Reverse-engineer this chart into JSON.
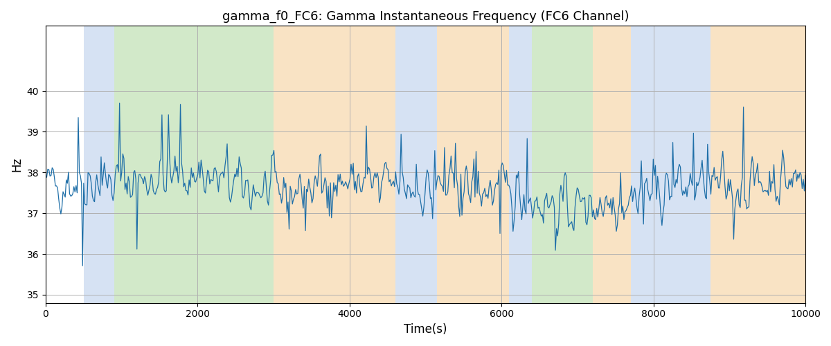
{
  "title": "gamma_f0_FC6: Gamma Instantaneous Frequency (FC6 Channel)",
  "xlabel": "Time(s)",
  "ylabel": "Hz",
  "xlim": [
    0,
    10000
  ],
  "ylim": [
    34.8,
    41.6
  ],
  "yticks": [
    35,
    36,
    37,
    38,
    39,
    40
  ],
  "xticks": [
    0,
    2000,
    4000,
    6000,
    8000,
    10000
  ],
  "line_color": "#1f6fa8",
  "line_width": 0.9,
  "background_color": "#ffffff",
  "grid_color": "#b0b0b0",
  "colored_bands": [
    {
      "xmin": 500,
      "xmax": 900,
      "color": "#aec6e8",
      "alpha": 0.5
    },
    {
      "xmin": 900,
      "xmax": 3000,
      "color": "#90c97a",
      "alpha": 0.4
    },
    {
      "xmin": 3000,
      "xmax": 4600,
      "color": "#f5c98a",
      "alpha": 0.5
    },
    {
      "xmin": 4600,
      "xmax": 5150,
      "color": "#aec6e8",
      "alpha": 0.5
    },
    {
      "xmin": 5150,
      "xmax": 6100,
      "color": "#f5c98a",
      "alpha": 0.5
    },
    {
      "xmin": 6100,
      "xmax": 6400,
      "color": "#aec6e8",
      "alpha": 0.5
    },
    {
      "xmin": 6400,
      "xmax": 7200,
      "color": "#90c97a",
      "alpha": 0.4
    },
    {
      "xmin": 7200,
      "xmax": 7700,
      "color": "#f5c98a",
      "alpha": 0.5
    },
    {
      "xmin": 7700,
      "xmax": 8750,
      "color": "#aec6e8",
      "alpha": 0.5
    },
    {
      "xmin": 8750,
      "xmax": 10000,
      "color": "#f5c98a",
      "alpha": 0.5
    }
  ],
  "seed": 42,
  "n_points": 700,
  "base_freq": 37.6,
  "noise_std": 0.55,
  "spike_prob": 0.06,
  "spike_scale": 0.9
}
